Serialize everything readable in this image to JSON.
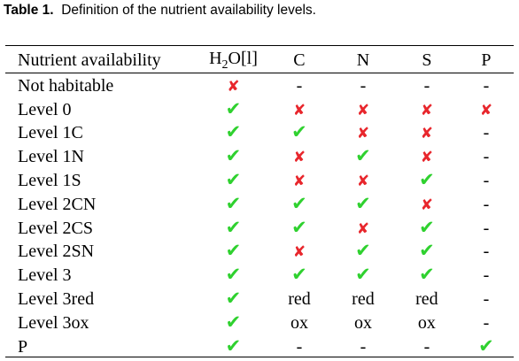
{
  "caption": {
    "label": "Table  1.",
    "text": "Definition of the nutrient availability levels."
  },
  "table": {
    "headers": [
      "Nutrient availability",
      "H2O[l]",
      "C",
      "N",
      "S",
      "P"
    ],
    "header_h2o": {
      "pre": "H",
      "sub": "2",
      "post": "O[l]"
    },
    "rows": [
      {
        "label": "Not habitable",
        "cells": [
          "cross",
          "-",
          "-",
          "-",
          "-"
        ]
      },
      {
        "label": "Level 0",
        "cells": [
          "check",
          "cross",
          "cross",
          "cross",
          "cross"
        ]
      },
      {
        "label": "Level 1C",
        "cells": [
          "check",
          "check",
          "cross",
          "cross",
          "-"
        ]
      },
      {
        "label": "Level 1N",
        "cells": [
          "check",
          "cross",
          "check",
          "cross",
          "-"
        ]
      },
      {
        "label": "Level 1S",
        "cells": [
          "check",
          "cross",
          "cross",
          "check",
          "-"
        ]
      },
      {
        "label": "Level 2CN",
        "cells": [
          "check",
          "check",
          "check",
          "cross",
          "-"
        ]
      },
      {
        "label": "Level 2CS",
        "cells": [
          "check",
          "check",
          "cross",
          "check",
          "-"
        ]
      },
      {
        "label": "Level 2SN",
        "cells": [
          "check",
          "cross",
          "check",
          "check",
          "-"
        ]
      },
      {
        "label": "Level 3",
        "cells": [
          "check",
          "check",
          "check",
          "check",
          "-"
        ]
      },
      {
        "label": "Level 3red",
        "cells": [
          "check",
          "red",
          "red",
          "red",
          "-"
        ]
      },
      {
        "label": "Level 3ox",
        "cells": [
          "check",
          "ox",
          "ox",
          "ox",
          "-"
        ]
      },
      {
        "label": "P",
        "cells": [
          "check",
          "-",
          "-",
          "-",
          "check"
        ]
      }
    ]
  },
  "colors": {
    "check": "#2fd12f",
    "cross": "#e8262c"
  },
  "icons": {
    "check": "check-icon",
    "cross": "cross-icon"
  }
}
